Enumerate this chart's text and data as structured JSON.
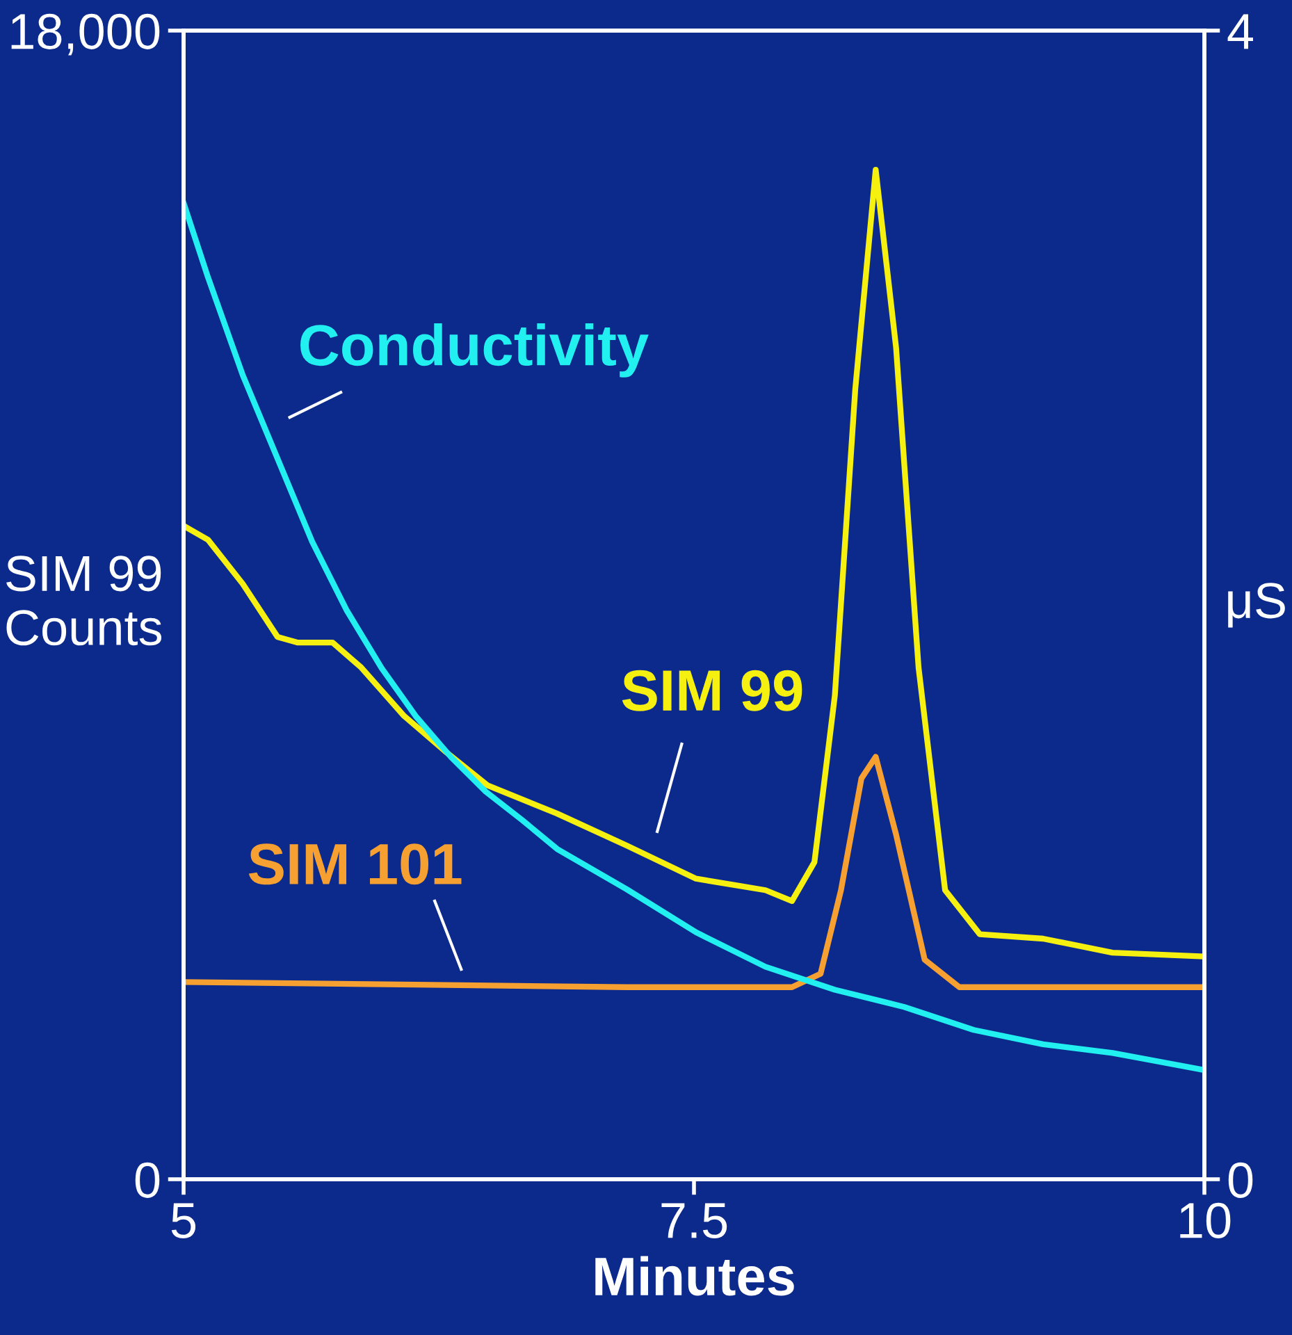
{
  "chart_data": {
    "type": "line",
    "xlabel": "Minutes",
    "ylabel": "SIM 99\nCounts",
    "y2label": "μS",
    "xlim": [
      5,
      10
    ],
    "xticks": [
      5,
      7.5,
      10
    ],
    "ylim": [
      0,
      18000
    ],
    "yticks": [
      0,
      {
        "value": 18000,
        "label": "18,000"
      }
    ],
    "y2lim": [
      0,
      4
    ],
    "y2ticks": [
      0,
      4
    ],
    "grid": false,
    "legend": false,
    "series": [
      {
        "name": "Conductivity",
        "color": "#22f0f0",
        "axis": "y2",
        "x": [
          5,
          5.12,
          5.29,
          5.46,
          5.63,
          5.8,
          5.97,
          6.14,
          6.31,
          6.48,
          6.66,
          6.83,
          7.17,
          7.51,
          7.85,
          8.19,
          8.53,
          8.87,
          9.21,
          9.55,
          10
        ],
        "values": [
          3.4,
          3.14,
          2.8,
          2.51,
          2.22,
          1.98,
          1.78,
          1.61,
          1.47,
          1.35,
          1.25,
          1.15,
          1.01,
          0.86,
          0.74,
          0.66,
          0.6,
          0.52,
          0.47,
          0.44,
          0.38
        ]
      },
      {
        "name": "SIM 99",
        "color": "#f5f010",
        "x": [
          5,
          5.12,
          5.29,
          5.46,
          5.56,
          5.73,
          5.87,
          6.08,
          6.28,
          6.49,
          6.83,
          7.17,
          7.51,
          7.85,
          7.98,
          8.09,
          8.19,
          8.29,
          8.39,
          8.49,
          8.6,
          8.73,
          8.9,
          9.21,
          9.55,
          10
        ],
        "values": [
          10240,
          10020,
          9330,
          8500,
          8410,
          8410,
          8020,
          7260,
          6710,
          6170,
          5730,
          5230,
          4710,
          4530,
          4360,
          4970,
          7580,
          12380,
          15820,
          13030,
          8020,
          4530,
          3840,
          3770,
          3550,
          3490
        ]
      },
      {
        "name": "SIM 101",
        "color": "#f5a030",
        "x": [
          5,
          6.14,
          7.17,
          7.98,
          8.12,
          8.22,
          8.32,
          8.39,
          8.49,
          8.63,
          8.8,
          10
        ],
        "values": [
          3090,
          3050,
          3010,
          3010,
          3220,
          4530,
          6280,
          6620,
          5400,
          3440,
          3010,
          3010
        ]
      }
    ]
  }
}
